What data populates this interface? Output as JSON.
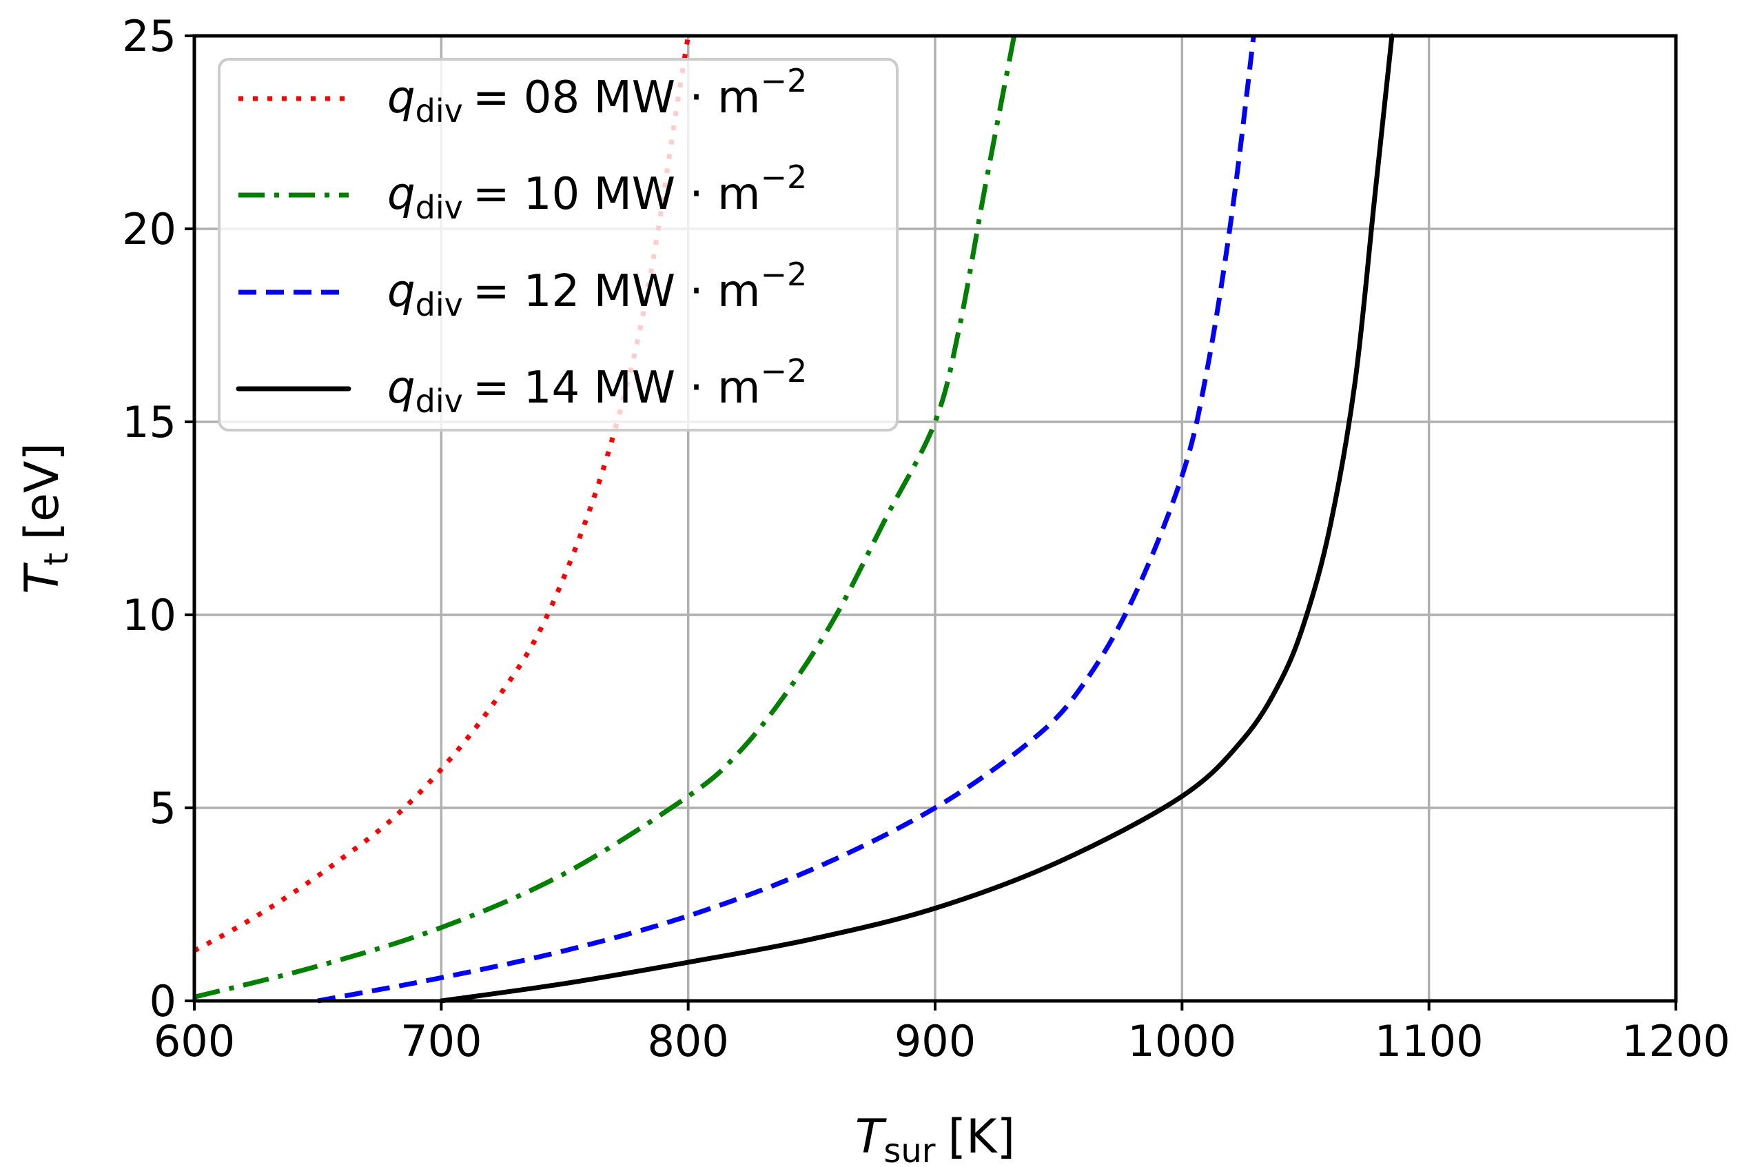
{
  "chart_data": {
    "type": "line",
    "xlabel": {
      "symbol": "T",
      "sub": "sur",
      "unit": "[K]"
    },
    "ylabel": {
      "symbol": "T",
      "sub": "t",
      "unit": "[eV]"
    },
    "xlim": [
      600,
      1200
    ],
    "ylim": [
      0,
      25
    ],
    "xticks": [
      "600",
      "700",
      "800",
      "900",
      "1000",
      "1100",
      "1200"
    ],
    "yticks": [
      "0",
      "5",
      "10",
      "15",
      "20",
      "25"
    ],
    "xtick_values": [
      600,
      700,
      800,
      900,
      1000,
      1100,
      1200
    ],
    "ytick_values": [
      0,
      5,
      10,
      15,
      20,
      25
    ],
    "grid": true,
    "legend_position": "top-left",
    "series": [
      {
        "name": "q_div = 08 MW · m^-2",
        "legend": {
          "sym": "q",
          "sub": "div",
          "value": "= 08 MW · m",
          "exp": "−2"
        },
        "color": "#ff0000",
        "style": "dotted",
        "x": [
          600,
          620,
          640,
          660,
          680,
          700,
          720,
          740,
          760,
          775,
          785,
          795,
          800
        ],
        "y": [
          1.3,
          2.0,
          2.8,
          3.7,
          4.7,
          6.0,
          7.6,
          9.6,
          12.7,
          15.9,
          18.9,
          23.0,
          25.0
        ]
      },
      {
        "name": "q_div = 10 MW · m^-2",
        "legend": {
          "sym": "q",
          "sub": "div",
          "value": "= 10 MW · m",
          "exp": "−2"
        },
        "color": "#008000",
        "style": "dashdot",
        "x": [
          600,
          650,
          700,
          750,
          800,
          820,
          840,
          860,
          880,
          900,
          910,
          920,
          932
        ],
        "y": [
          0.1,
          0.9,
          1.9,
          3.3,
          5.3,
          6.4,
          8.0,
          10.0,
          12.5,
          15.0,
          17.5,
          21.0,
          25.0
        ]
      },
      {
        "name": "q_div = 12 MW · m^-2",
        "legend": {
          "sym": "q",
          "sub": "div",
          "value": "= 12 MW · m",
          "exp": "−2"
        },
        "color": "#0000ff",
        "style": "dashed",
        "x": [
          650,
          700,
          750,
          800,
          850,
          900,
          940,
          960,
          980,
          1000,
          1010,
          1020,
          1029
        ],
        "y": [
          0.0,
          0.6,
          1.3,
          2.2,
          3.4,
          5.0,
          6.8,
          8.2,
          10.4,
          13.6,
          16.3,
          20.3,
          25.0
        ]
      },
      {
        "name": "q_div = 14 MW · m^-2",
        "legend": {
          "sym": "q",
          "sub": "div",
          "value": "= 14 MW · m",
          "exp": "−2"
        },
        "color": "#000000",
        "style": "solid",
        "x": [
          700,
          750,
          800,
          850,
          900,
          950,
          1000,
          1025,
          1040,
          1050,
          1060,
          1070,
          1078,
          1085
        ],
        "y": [
          0.0,
          0.45,
          1.0,
          1.6,
          2.4,
          3.6,
          5.3,
          6.8,
          8.3,
          9.9,
          12.3,
          16.0,
          20.8,
          25.0
        ]
      }
    ]
  }
}
